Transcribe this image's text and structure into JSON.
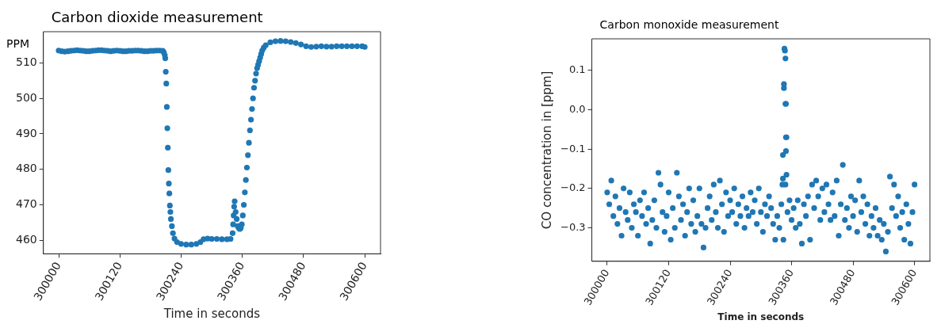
{
  "chart_data": [
    {
      "type": "scatter",
      "title": "Carbon dioxide measurement",
      "xlabel": "Time in seconds",
      "ylabel": "PPM",
      "xlim": [
        299970,
        300631
      ],
      "xticks": [
        300000,
        300120,
        300240,
        300360,
        300480,
        300600
      ],
      "ylim": [
        456.2,
        518.8
      ],
      "yticks": [
        460,
        470,
        480,
        490,
        500,
        510
      ],
      "grid": false,
      "marker": "circle",
      "series": [
        {
          "color": "#1f77b4",
          "x": [
            300000,
            300006,
            300012,
            300018,
            300024,
            300030,
            300036,
            300042,
            300048,
            300054,
            300060,
            300066,
            300072,
            300078,
            300084,
            300090,
            300096,
            300102,
            300108,
            300114,
            300120,
            300126,
            300132,
            300138,
            300144,
            300150,
            300156,
            300162,
            300168,
            300174,
            300180,
            300186,
            300192,
            300198,
            300204,
            300206,
            300208,
            300209,
            300210,
            300211,
            300212,
            300213,
            300214,
            300215,
            300216,
            300217,
            300218,
            300219,
            300220,
            300222,
            300224,
            300227,
            300232,
            300240,
            300250,
            300260,
            300270,
            300278,
            300284,
            300292,
            300300,
            300310,
            300320,
            300330,
            300337,
            300341,
            300342,
            300343,
            300344,
            300345,
            300347,
            300349,
            300351,
            300353,
            300355,
            300357,
            300359,
            300361,
            300363,
            300365,
            300367,
            300369,
            300371,
            300373,
            300375,
            300377,
            300379,
            300381,
            300383,
            300385,
            300387,
            300389,
            300391,
            300393,
            300395,
            300397,
            300399,
            300402,
            300406,
            300415,
            300425,
            300435,
            300445,
            300455,
            300465,
            300475,
            300485,
            300495,
            300505,
            300515,
            300525,
            300535,
            300545,
            300555,
            300565,
            300575,
            300585,
            300595,
            300600
          ],
          "values": [
            513.5,
            513.3,
            513.2,
            513.3,
            513.4,
            513.5,
            513.6,
            513.5,
            513.4,
            513.3,
            513.3,
            513.4,
            513.5,
            513.6,
            513.6,
            513.5,
            513.4,
            513.3,
            513.4,
            513.5,
            513.4,
            513.3,
            513.3,
            513.4,
            513.4,
            513.5,
            513.5,
            513.4,
            513.3,
            513.3,
            513.4,
            513.4,
            513.5,
            513.5,
            513.4,
            513.0,
            512.2,
            511.3,
            507.5,
            504.2,
            497.6,
            491.6,
            486.1,
            479.8,
            476.0,
            473.2,
            469.8,
            468,
            466,
            464,
            462,
            460.5,
            459.5,
            459.0,
            458.8,
            458.8,
            459.0,
            459.5,
            460.3,
            460.5,
            460.4,
            460.4,
            460.3,
            460.3,
            460.4,
            462,
            464.5,
            467,
            469.5,
            471,
            468,
            466,
            464,
            463.5,
            463.2,
            463.5,
            464.5,
            467,
            470,
            473.5,
            477,
            480.5,
            484,
            487.5,
            491,
            494,
            497,
            500,
            503,
            505,
            507,
            508.5,
            509.5,
            510.5,
            511.5,
            512.5,
            513.5,
            514.3,
            515.0,
            515.8,
            516.1,
            516.2,
            516.1,
            515.9,
            515.6,
            515.2,
            514.7,
            514.5,
            514.6,
            514.7,
            514.6,
            514.6,
            514.7,
            514.7,
            514.7,
            514.7,
            514.7,
            514.7,
            514.5
          ]
        }
      ]
    },
    {
      "type": "scatter",
      "title": "Carbon monoxide measurement",
      "xlabel": "Time in seconds",
      "ylabel": "CO concentration in [ppm]",
      "xlim": [
        299970,
        300630
      ],
      "xticks": [
        300000,
        300120,
        300240,
        300360,
        300480,
        300600
      ],
      "ylim": [
        -0.385,
        0.18
      ],
      "yticks": [
        {
          "value": -0.3,
          "label": "−0.3"
        },
        {
          "value": -0.2,
          "label": "−0.2"
        },
        {
          "value": -0.1,
          "label": "−0.1"
        },
        {
          "value": 0,
          "label": "0.0"
        },
        0.1
      ],
      "grid": false,
      "marker": "circle",
      "series": [
        {
          "color": "#1f77b4",
          "x": [
            300000,
            300004,
            300008,
            300012,
            300016,
            300020,
            300024,
            300028,
            300032,
            300036,
            300040,
            300044,
            300048,
            300052,
            300056,
            300060,
            300064,
            300068,
            300072,
            300076,
            300080,
            300084,
            300088,
            300092,
            300096,
            300100,
            300104,
            300108,
            300112,
            300116,
            300120,
            300124,
            300128,
            300132,
            300136,
            300140,
            300144,
            300148,
            300152,
            300156,
            300160,
            300164,
            300168,
            300172,
            300176,
            300180,
            300184,
            300188,
            300192,
            300196,
            300200,
            300204,
            300208,
            300212,
            300216,
            300220,
            300224,
            300228,
            300232,
            300236,
            300240,
            300244,
            300248,
            300252,
            300256,
            300260,
            300264,
            300268,
            300272,
            300276,
            300280,
            300284,
            300288,
            300292,
            300296,
            300300,
            300304,
            300308,
            300312,
            300316,
            300320,
            300324,
            300328,
            300332,
            300336,
            300340,
            300344,
            300348,
            300352,
            300356,
            300360,
            300364,
            300368,
            300372,
            300376,
            300380,
            300384,
            300388,
            300392,
            300396,
            300400,
            300404,
            300408,
            300412,
            300416,
            300420,
            300424,
            300428,
            300432,
            300436,
            300440,
            300444,
            300448,
            300452,
            300456,
            300460,
            300464,
            300468,
            300472,
            300476,
            300480,
            300484,
            300488,
            300492,
            300496,
            300500,
            300504,
            300508,
            300512,
            300516,
            300520,
            300524,
            300528,
            300532,
            300536,
            300540,
            300544,
            300548,
            300552,
            300556,
            300560,
            300564,
            300568,
            300572,
            300576,
            300580,
            300584,
            300588,
            300592,
            300596,
            300600,
            300346,
            300347,
            300348,
            300345,
            300345,
            300348,
            300349,
            300349,
            300350,
            300349,
            300343,
            300343,
            300342,
            300350
          ],
          "values": [
            -0.21,
            -0.24,
            -0.18,
            -0.27,
            -0.22,
            -0.29,
            -0.25,
            -0.32,
            -0.2,
            -0.26,
            -0.28,
            -0.21,
            -0.3,
            -0.24,
            -0.26,
            -0.32,
            -0.23,
            -0.27,
            -0.21,
            -0.29,
            -0.25,
            -0.34,
            -0.28,
            -0.23,
            -0.3,
            -0.16,
            -0.19,
            -0.26,
            -0.31,
            -0.27,
            -0.21,
            -0.33,
            -0.25,
            -0.3,
            -0.16,
            -0.22,
            -0.28,
            -0.24,
            -0.32,
            -0.26,
            -0.2,
            -0.29,
            -0.23,
            -0.31,
            -0.27,
            -0.2,
            -0.29,
            -0.35,
            -0.3,
            -0.25,
            -0.22,
            -0.28,
            -0.19,
            -0.26,
            -0.3,
            -0.18,
            -0.24,
            -0.31,
            -0.21,
            -0.27,
            -0.23,
            -0.26,
            -0.2,
            -0.29,
            -0.24,
            -0.27,
            -0.22,
            -0.3,
            -0.25,
            -0.27,
            -0.21,
            -0.26,
            -0.23,
            -0.29,
            -0.2,
            -0.26,
            -0.31,
            -0.24,
            -0.27,
            -0.22,
            -0.25,
            -0.29,
            -0.33,
            -0.27,
            -0.3,
            -0.24,
            -0.33,
            -0.19,
            -0.26,
            -0.23,
            -0.28,
            -0.25,
            -0.3,
            -0.23,
            -0.29,
            -0.34,
            -0.24,
            -0.27,
            -0.22,
            -0.33,
            -0.19,
            -0.25,
            -0.18,
            -0.22,
            -0.28,
            -0.2,
            -0.26,
            -0.19,
            -0.24,
            -0.28,
            -0.21,
            -0.27,
            -0.18,
            -0.32,
            -0.24,
            -0.14,
            -0.28,
            -0.25,
            -0.3,
            -0.22,
            -0.27,
            -0.23,
            -0.31,
            -0.18,
            -0.26,
            -0.22,
            -0.29,
            -0.24,
            -0.32,
            -0.27,
            -0.3,
            -0.25,
            -0.32,
            -0.28,
            -0.33,
            -0.29,
            -0.36,
            -0.31,
            -0.17,
            -0.25,
            -0.19,
            -0.27,
            -0.22,
            -0.3,
            -0.26,
            -0.33,
            -0.24,
            -0.29,
            -0.34,
            -0.26,
            -0.19,
            0.155,
            0.15,
            0.13,
            0.065,
            0.055,
            0.015,
            0.015,
            -0.07,
            -0.07,
            -0.105,
            -0.115,
            -0.175,
            -0.19,
            -0.165
          ]
        }
      ]
    }
  ]
}
